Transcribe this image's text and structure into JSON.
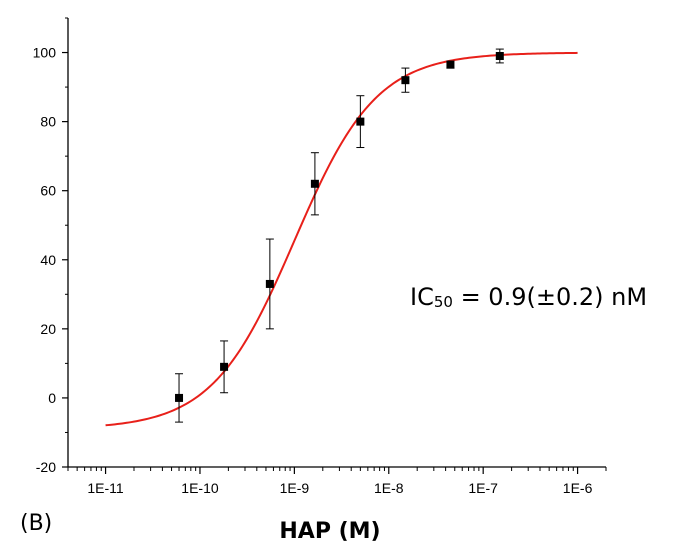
{
  "chart_data": {
    "type": "scatter",
    "x_scale": "log",
    "xlabel": "HAP (M)",
    "ylabel": "",
    "xlim": [
      4e-12,
      2e-06
    ],
    "ylim": [
      -20,
      110
    ],
    "x_ticks": [
      1e-11,
      1e-10,
      1e-09,
      1e-08,
      1e-07,
      1e-06
    ],
    "x_tick_labels": [
      "1E-11",
      "1E-10",
      "1E-9",
      "1E-8",
      "1E-7",
      "1E-6"
    ],
    "y_ticks": [
      -20,
      0,
      20,
      40,
      60,
      80,
      100
    ],
    "y_tick_labels": [
      "-20",
      "0",
      "20",
      "40",
      "60",
      "80",
      "100"
    ],
    "panel_label": "(B)",
    "annotation": {
      "prefix": "IC",
      "subscript": "50",
      "suffix": " = 0.9(±0.2) nM"
    },
    "series": [
      {
        "marker_color": "#000000",
        "error_color": "#000000",
        "points": [
          {
            "x": 6e-11,
            "y": 0,
            "err": 7
          },
          {
            "x": 1.8e-10,
            "y": 9,
            "err": 7.5
          },
          {
            "x": 5.5e-10,
            "y": 33,
            "err": 13
          },
          {
            "x": 1.65e-09,
            "y": 62,
            "err": 9
          },
          {
            "x": 5e-09,
            "y": 80,
            "err": 7.5
          },
          {
            "x": 1.5e-08,
            "y": 92,
            "err": 3.5
          },
          {
            "x": 4.5e-08,
            "y": 96.5,
            "err": 1
          },
          {
            "x": 1.5e-07,
            "y": 99,
            "err": 2
          }
        ]
      }
    ],
    "fit_curve": {
      "color": "#e8201a",
      "bottom": -9,
      "top": 100,
      "ec50": 1e-09,
      "hill": 1,
      "x_range": [
        1e-11,
        1e-06
      ]
    }
  }
}
